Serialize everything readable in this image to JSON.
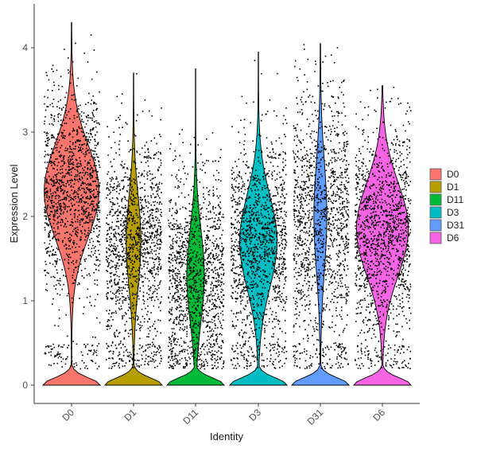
{
  "chart_data": {
    "type": "violin",
    "xlabel": "Identity",
    "ylabel": "Expression Level",
    "ylim": [
      0,
      4.3
    ],
    "yticks": [
      0,
      1,
      2,
      3,
      4
    ],
    "categories": [
      "D0",
      "D1",
      "D11",
      "D3",
      "D31",
      "D6"
    ],
    "series": [
      {
        "name": "D0",
        "color": "#F8766D",
        "max": 4.3,
        "zero_fraction": 0.18,
        "mode": 2.3,
        "spread": 0.55,
        "density_scale": 0.95
      },
      {
        "name": "D1",
        "color": "#B79F00",
        "max": 3.7,
        "zero_fraction": 0.22,
        "mode": 1.7,
        "spread": 0.55,
        "density_scale": 0.25
      },
      {
        "name": "D11",
        "color": "#00BA38",
        "max": 3.75,
        "zero_fraction": 0.25,
        "mode": 1.3,
        "spread": 0.55,
        "density_scale": 0.3
      },
      {
        "name": "D3",
        "color": "#00BFC4",
        "max": 3.95,
        "zero_fraction": 0.2,
        "mode": 1.7,
        "spread": 0.55,
        "density_scale": 0.65
      },
      {
        "name": "D31",
        "color": "#619CFF",
        "max": 4.05,
        "zero_fraction": 0.2,
        "mode": 2.0,
        "spread": 0.65,
        "density_scale": 0.22
      },
      {
        "name": "D6",
        "color": "#F564E3",
        "max": 3.55,
        "zero_fraction": 0.2,
        "mode": 1.85,
        "spread": 0.55,
        "density_scale": 0.9
      }
    ],
    "legend": {
      "position": "right"
    },
    "grid": false
  }
}
